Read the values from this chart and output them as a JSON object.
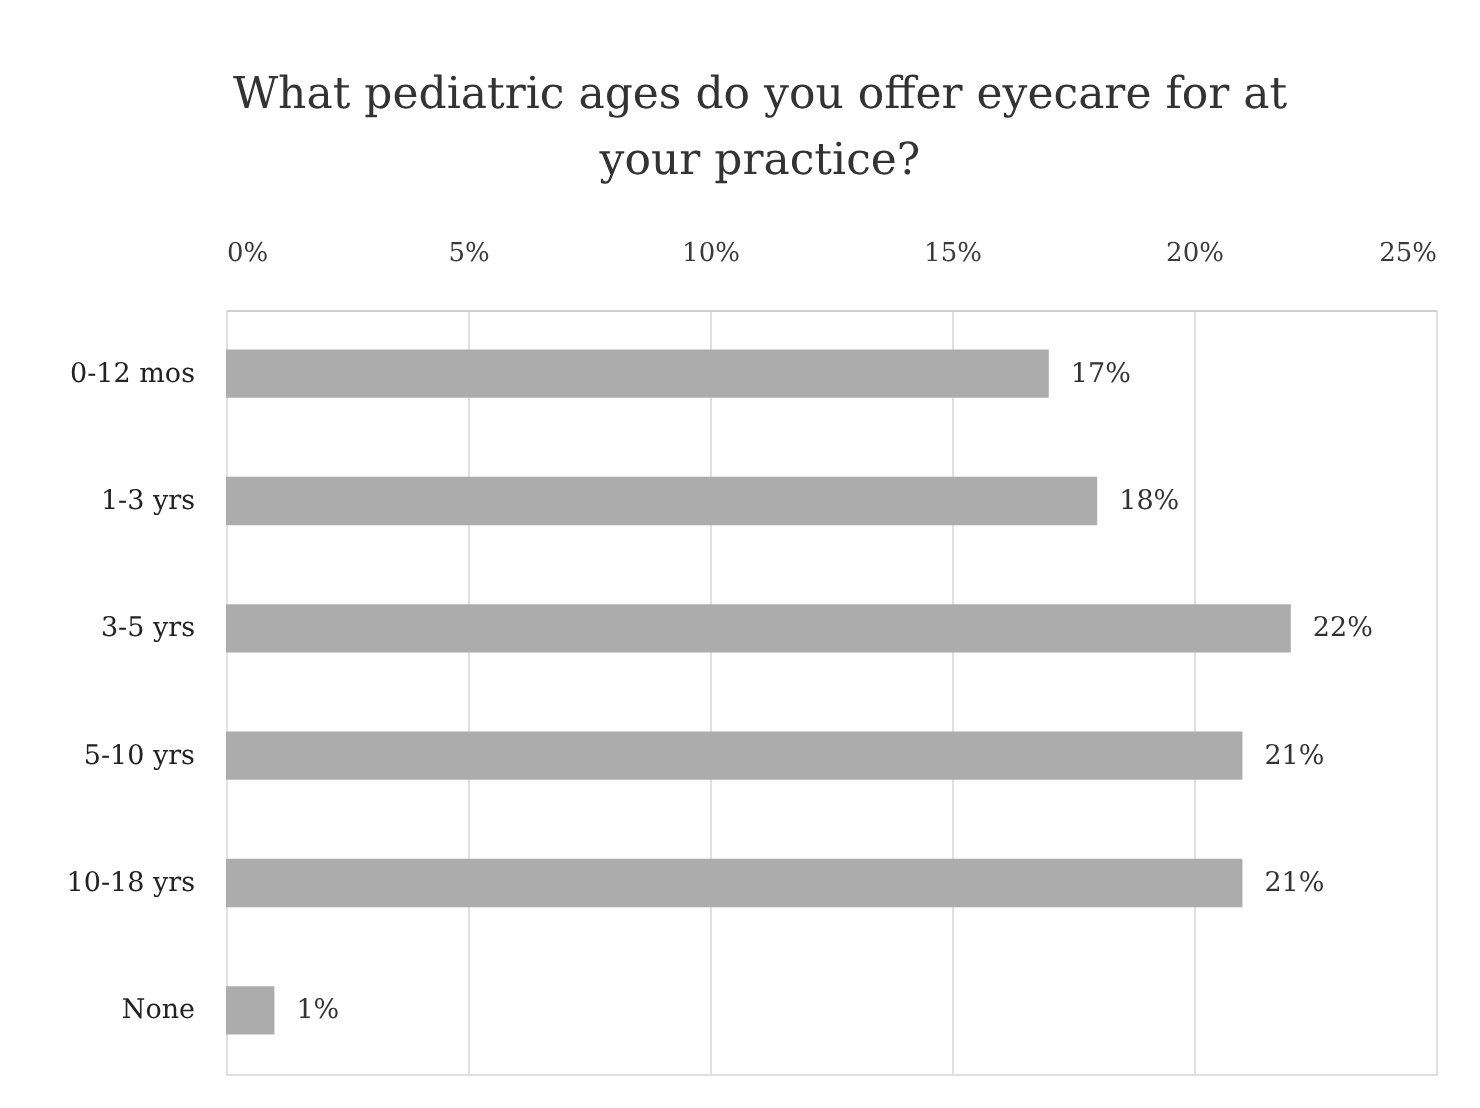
{
  "chart_data": {
    "type": "bar",
    "orientation": "horizontal",
    "title": "What pediatric ages do you offer eyecare for at your practice?",
    "categories": [
      "0-12 mos",
      "1-3 yrs",
      "3-5 yrs",
      "5-10 yrs",
      "10-18 yrs",
      "None"
    ],
    "values": [
      17,
      18,
      22,
      21,
      21,
      1
    ],
    "value_labels": [
      "17%",
      "18%",
      "22%",
      "21%",
      "21%",
      "1%"
    ],
    "color": "#acacac",
    "xlim": [
      0,
      25
    ],
    "xticks": [
      {
        "value": 0,
        "label": "0%"
      },
      {
        "value": 5,
        "label": "5%"
      },
      {
        "value": 10,
        "label": "10%"
      },
      {
        "value": 15,
        "label": "15%"
      },
      {
        "value": 20,
        "label": "20%"
      },
      {
        "value": 25,
        "label": "25%"
      }
    ],
    "grid": "x"
  }
}
